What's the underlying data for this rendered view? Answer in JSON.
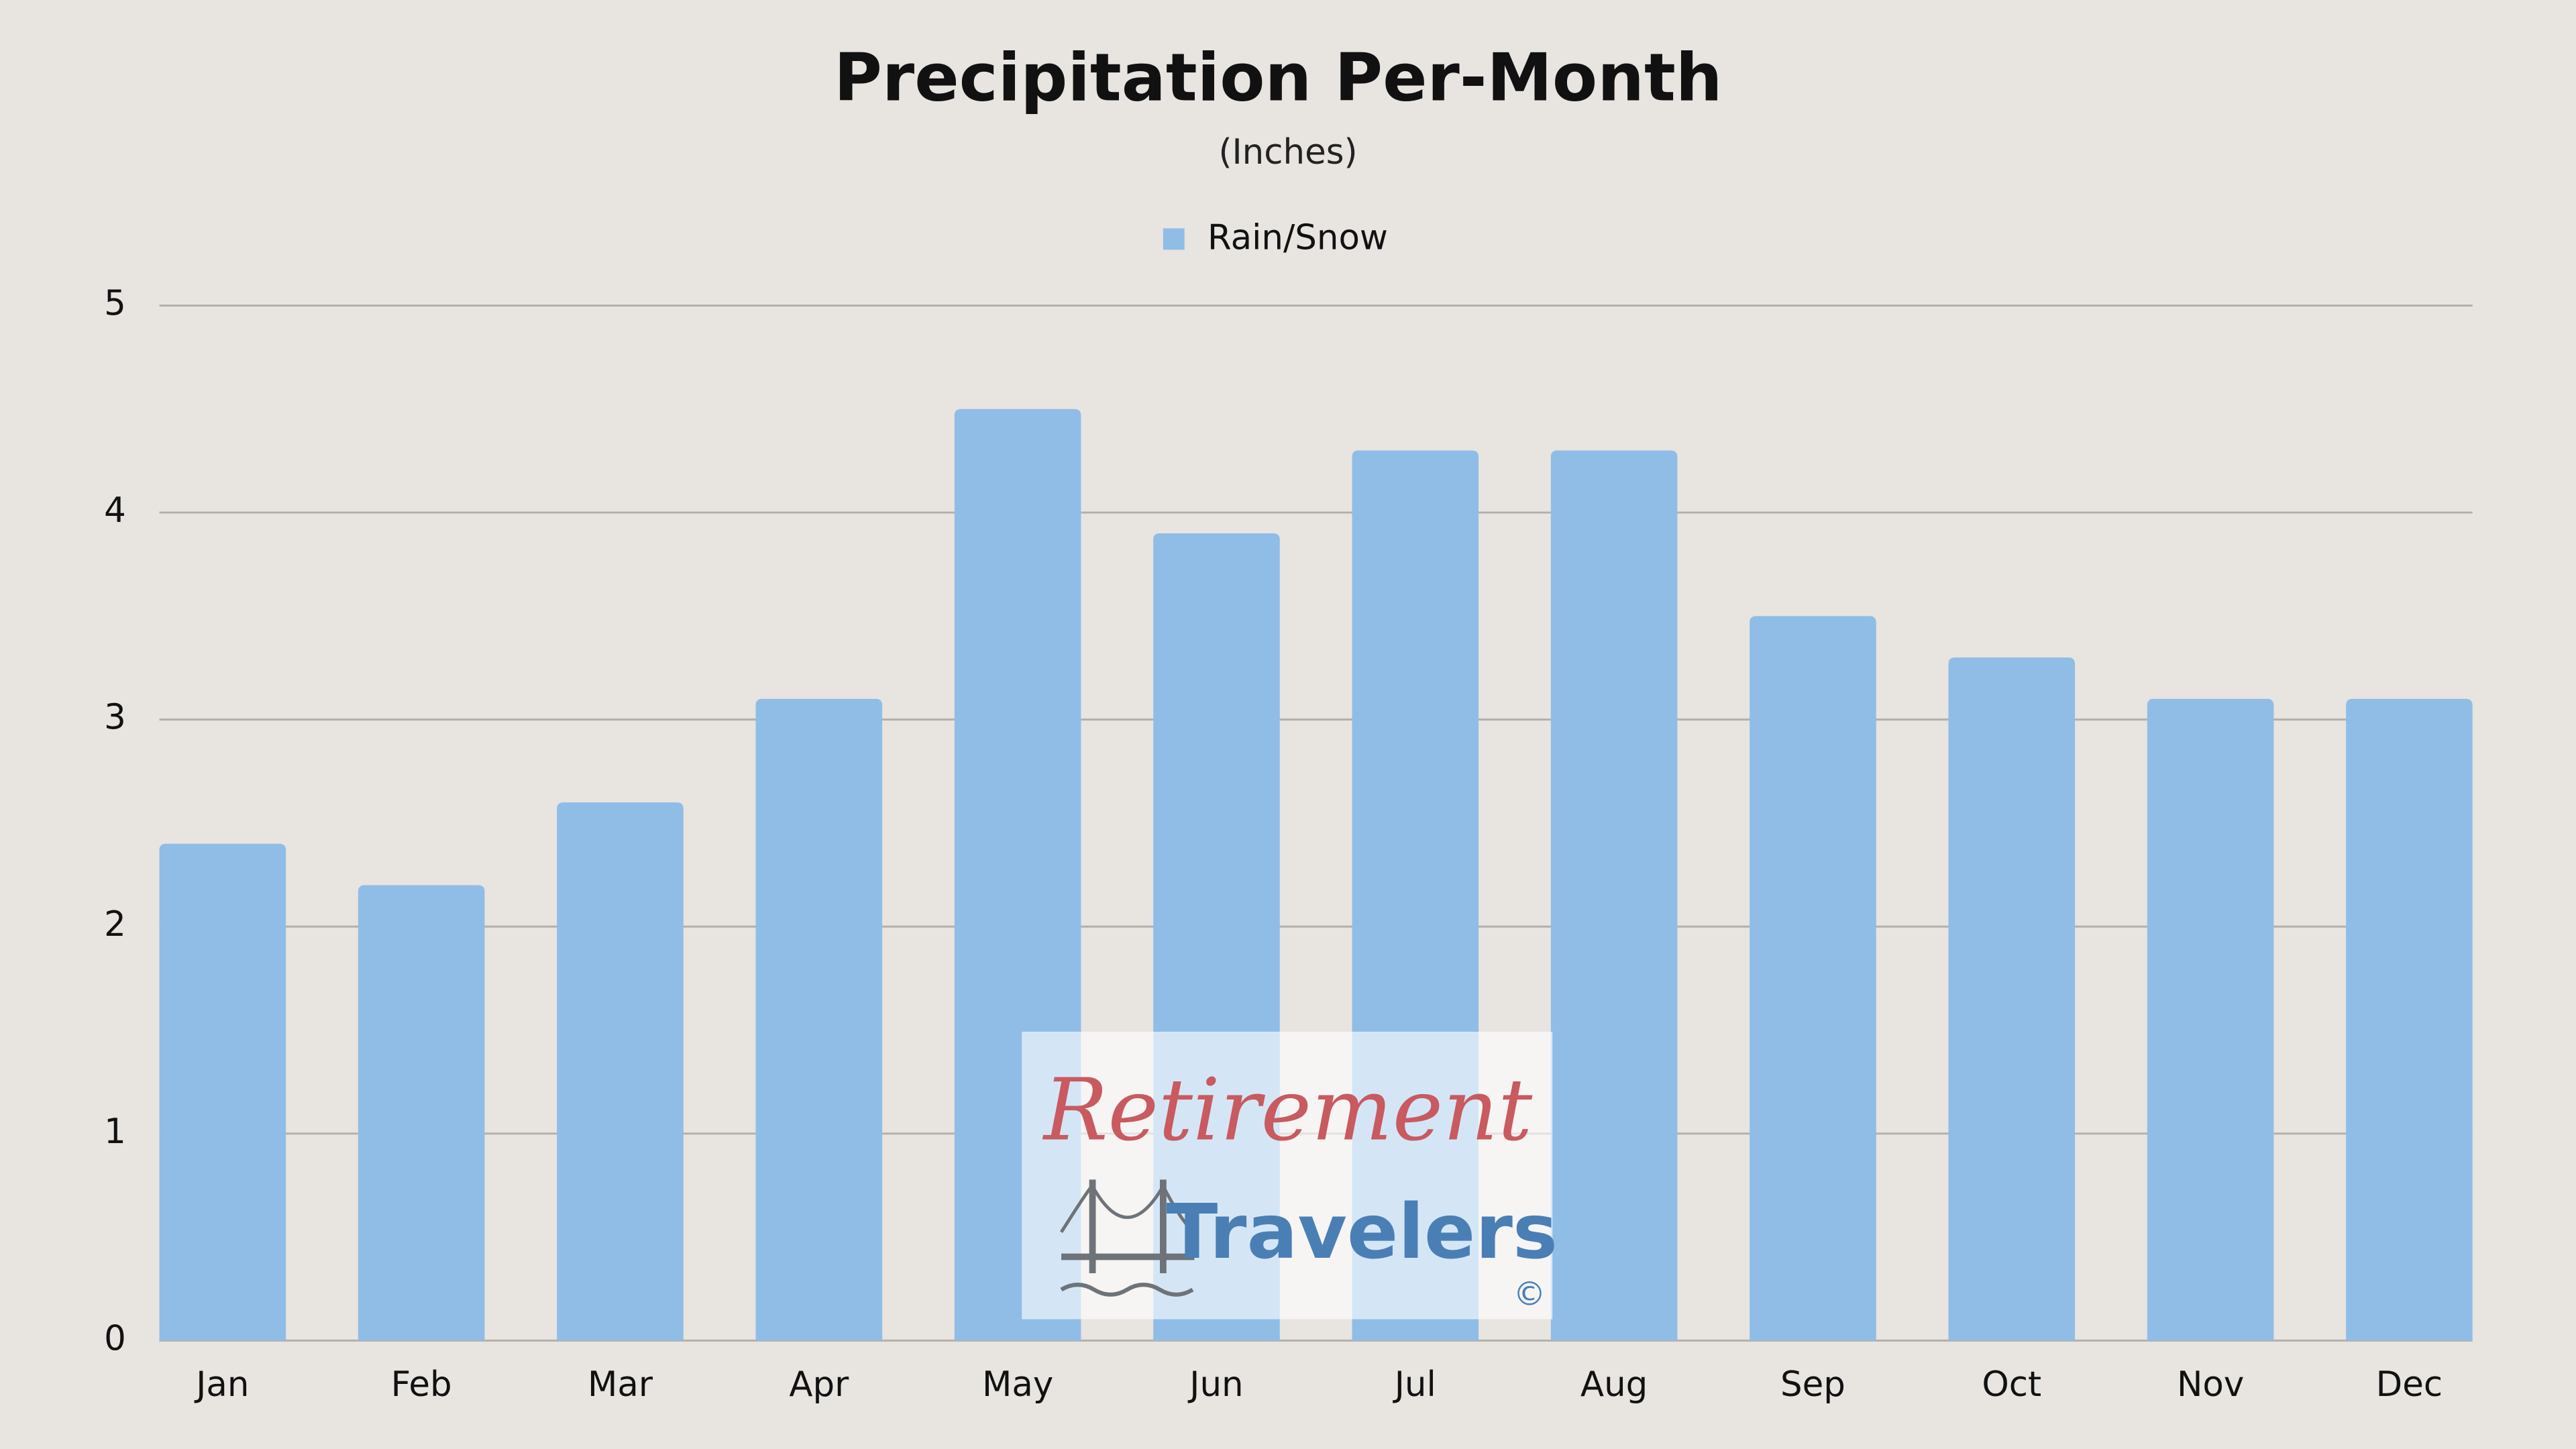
{
  "chart_data": {
    "type": "bar",
    "title": "Precipitation Per-Month",
    "subtitle": "(Inches)",
    "categories": [
      "Jan",
      "Feb",
      "Mar",
      "Apr",
      "May",
      "Jun",
      "Jul",
      "Aug",
      "Sep",
      "Oct",
      "Nov",
      "Dec"
    ],
    "series": [
      {
        "name": "Rain/Snow",
        "color": "#8fbde6",
        "values": [
          2.4,
          2.2,
          2.6,
          3.1,
          4.5,
          3.9,
          4.3,
          4.3,
          3.5,
          3.3,
          3.1,
          3.1
        ]
      }
    ],
    "ylim": [
      0,
      5
    ],
    "yticks": [
      0,
      1,
      2,
      3,
      4,
      5
    ],
    "grid": true,
    "legend": "top",
    "watermark": [
      "Retirement",
      "Travelers",
      "©"
    ]
  }
}
